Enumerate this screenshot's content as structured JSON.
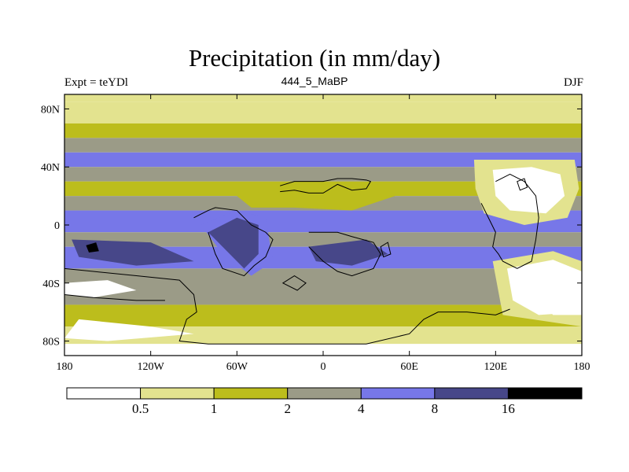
{
  "title": "Precipitation (in mm/day)",
  "subtitle_left": "Expt = teYDl",
  "subtitle_center": "444_5_MaBP",
  "subtitle_right": "DJF",
  "colors": {
    "lt05": "#ffffff",
    "0.5-1": "#e3e38f",
    "1-2": "#bcbd1c",
    "2-4": "#9b9b87",
    "4-8": "#7777e8",
    "8-16": "#474789",
    "gt16": "#000000",
    "coast": "#000000"
  },
  "lat_ticks": [
    {
      "value": 80,
      "label": "80N"
    },
    {
      "value": 40,
      "label": "40N"
    },
    {
      "value": 0,
      "label": "0"
    },
    {
      "value": -40,
      "label": "40S"
    },
    {
      "value": -80,
      "label": "80S"
    }
  ],
  "lon_ticks": [
    {
      "value": -180,
      "label": "180"
    },
    {
      "value": -120,
      "label": "120W"
    },
    {
      "value": -60,
      "label": "60W"
    },
    {
      "value": 0,
      "label": "0"
    },
    {
      "value": 60,
      "label": "60E"
    },
    {
      "value": 120,
      "label": "120E"
    },
    {
      "value": 180,
      "label": "180"
    }
  ],
  "colorbar": {
    "boxes": [
      "lt05",
      "0.5-1",
      "1-2",
      "2-4",
      "4-8",
      "8-16",
      "gt16"
    ],
    "labels": [
      "0.5",
      "1",
      "2",
      "4",
      "8",
      "16"
    ]
  },
  "bands": [
    {
      "lat_top": 90,
      "lat_bot": 85,
      "cls": "0.5-1"
    },
    {
      "lat_top": 85,
      "lat_bot": 70,
      "cls": "0.5-1"
    },
    {
      "lat_top": 70,
      "lat_bot": 60,
      "cls": "1-2"
    },
    {
      "lat_top": 60,
      "lat_bot": 50,
      "cls": "2-4"
    },
    {
      "lat_top": 50,
      "lat_bot": 40,
      "cls": "4-8"
    },
    {
      "lat_top": 40,
      "lat_bot": 30,
      "cls": "2-4"
    },
    {
      "lat_top": 30,
      "lat_bot": 20,
      "cls": "1-2"
    },
    {
      "lat_top": 20,
      "lat_bot": 10,
      "cls": "2-4"
    },
    {
      "lat_top": 10,
      "lat_bot": -5,
      "cls": "4-8"
    },
    {
      "lat_top": -5,
      "lat_bot": -15,
      "cls": "2-4"
    },
    {
      "lat_top": -15,
      "lat_bot": -30,
      "cls": "4-8"
    },
    {
      "lat_top": -30,
      "lat_bot": -55,
      "cls": "2-4"
    },
    {
      "lat_top": -55,
      "lat_bot": -70,
      "cls": "1-2"
    },
    {
      "lat_top": -70,
      "lat_bot": -82,
      "cls": "0.5-1"
    },
    {
      "lat_top": -82,
      "lat_bot": -90,
      "cls": "lt05"
    }
  ],
  "patches": [
    {
      "cls": "lt05",
      "poly": [
        [
          115,
          40
        ],
        [
          140,
          42
        ],
        [
          165,
          38
        ],
        [
          170,
          25
        ],
        [
          165,
          10
        ],
        [
          150,
          5
        ],
        [
          130,
          6
        ],
        [
          122,
          18
        ]
      ]
    },
    {
      "cls": "0.5-1",
      "poly": [
        [
          105,
          45
        ],
        [
          175,
          45
        ],
        [
          178,
          25
        ],
        [
          170,
          5
        ],
        [
          140,
          0
        ],
        [
          112,
          8
        ],
        [
          106,
          25
        ]
      ]
    },
    {
      "cls": "lt05",
      "poly": [
        [
          118,
          38
        ],
        [
          145,
          40
        ],
        [
          165,
          35
        ],
        [
          168,
          20
        ],
        [
          155,
          8
        ],
        [
          130,
          10
        ],
        [
          120,
          20
        ]
      ]
    },
    {
      "cls": "lt05",
      "poly": [
        [
          125,
          -30
        ],
        [
          155,
          -22
        ],
        [
          178,
          -30
        ],
        [
          178,
          -60
        ],
        [
          150,
          -65
        ],
        [
          128,
          -55
        ]
      ]
    },
    {
      "cls": "0.5-1",
      "poly": [
        [
          118,
          -25
        ],
        [
          160,
          -18
        ],
        [
          180,
          -25
        ],
        [
          180,
          -70
        ],
        [
          125,
          -62
        ]
      ]
    },
    {
      "cls": "lt05",
      "poly": [
        [
          128,
          -30
        ],
        [
          160,
          -24
        ],
        [
          180,
          -32
        ],
        [
          180,
          -60
        ],
        [
          150,
          -62
        ],
        [
          132,
          -52
        ]
      ]
    },
    {
      "cls": "1-2",
      "poly": [
        [
          -60,
          20
        ],
        [
          -30,
          25
        ],
        [
          0,
          22
        ],
        [
          40,
          28
        ],
        [
          50,
          20
        ],
        [
          20,
          10
        ],
        [
          -20,
          12
        ],
        [
          -50,
          12
        ]
      ]
    },
    {
      "cls": "4-8",
      "poly": [
        [
          -85,
          0
        ],
        [
          -60,
          10
        ],
        [
          -40,
          5
        ],
        [
          -35,
          -25
        ],
        [
          -50,
          -35
        ],
        [
          -70,
          -20
        ]
      ]
    },
    {
      "cls": "8-16",
      "poly": [
        [
          -80,
          -5
        ],
        [
          -60,
          5
        ],
        [
          -45,
          0
        ],
        [
          -45,
          -20
        ],
        [
          -55,
          -30
        ],
        [
          -70,
          -15
        ]
      ]
    },
    {
      "cls": "8-16",
      "poly": [
        [
          -175,
          -10
        ],
        [
          -120,
          -12
        ],
        [
          -90,
          -25
        ],
        [
          -130,
          -28
        ],
        [
          -170,
          -22
        ]
      ]
    },
    {
      "cls": "8-16",
      "poly": [
        [
          -10,
          -15
        ],
        [
          30,
          -10
        ],
        [
          45,
          -20
        ],
        [
          20,
          -28
        ],
        [
          -5,
          -25
        ]
      ]
    },
    {
      "cls": "gt16",
      "poly": [
        [
          -165,
          -14
        ],
        [
          -158,
          -12
        ],
        [
          -156,
          -18
        ],
        [
          -163,
          -19
        ]
      ]
    },
    {
      "cls": "lt05",
      "poly": [
        [
          -180,
          -40
        ],
        [
          -150,
          -38
        ],
        [
          -130,
          -45
        ],
        [
          -160,
          -50
        ],
        [
          -180,
          -48
        ]
      ]
    },
    {
      "cls": "lt05",
      "poly": [
        [
          150,
          -52
        ],
        [
          180,
          -50
        ],
        [
          180,
          -62
        ],
        [
          160,
          -62
        ]
      ]
    },
    {
      "cls": "lt05",
      "poly": [
        [
          -170,
          -65
        ],
        [
          -120,
          -70
        ],
        [
          -90,
          -75
        ],
        [
          -150,
          -80
        ],
        [
          -180,
          -78
        ]
      ]
    }
  ],
  "coastlines": [
    [
      [
        -30,
        27
      ],
      [
        -20,
        30
      ],
      [
        -10,
        30
      ],
      [
        0,
        30
      ],
      [
        10,
        32
      ],
      [
        20,
        32
      ],
      [
        30,
        31
      ],
      [
        33,
        30
      ],
      [
        30,
        25
      ],
      [
        20,
        24
      ],
      [
        10,
        28
      ],
      [
        0,
        22
      ],
      [
        -10,
        22
      ],
      [
        -20,
        24
      ],
      [
        -30,
        23
      ]
    ],
    [
      [
        -90,
        5
      ],
      [
        -80,
        10
      ],
      [
        -75,
        12
      ],
      [
        -60,
        10
      ],
      [
        -50,
        0
      ],
      [
        -40,
        -5
      ],
      [
        -35,
        -10
      ],
      [
        -40,
        -22
      ],
      [
        -48,
        -28
      ],
      [
        -55,
        -35
      ],
      [
        -70,
        -30
      ],
      [
        -75,
        -20
      ],
      [
        -80,
        -5
      ]
    ],
    [
      [
        -10,
        -5
      ],
      [
        10,
        -5
      ],
      [
        20,
        -8
      ],
      [
        35,
        -12
      ],
      [
        40,
        -20
      ],
      [
        35,
        -30
      ],
      [
        20,
        -35
      ],
      [
        10,
        -32
      ],
      [
        0,
        -25
      ],
      [
        -10,
        -15
      ]
    ],
    [
      [
        110,
        15
      ],
      [
        115,
        5
      ],
      [
        120,
        -5
      ],
      [
        118,
        -15
      ],
      [
        122,
        -20
      ],
      [
        125,
        -25
      ],
      [
        135,
        -30
      ],
      [
        145,
        -25
      ],
      [
        148,
        -10
      ],
      [
        150,
        5
      ],
      [
        148,
        20
      ],
      [
        140,
        30
      ],
      [
        130,
        35
      ],
      [
        120,
        30
      ]
    ],
    [
      [
        -180,
        -30
      ],
      [
        -160,
        -32
      ],
      [
        -130,
        -35
      ],
      [
        -100,
        -38
      ],
      [
        -90,
        -48
      ],
      [
        -88,
        -60
      ],
      [
        -95,
        -65
      ],
      [
        -100,
        -80
      ],
      [
        -80,
        -82
      ],
      [
        -40,
        -82
      ],
      [
        0,
        -82
      ],
      [
        30,
        -82
      ],
      [
        60,
        -75
      ],
      [
        70,
        -65
      ],
      [
        80,
        -60
      ],
      [
        100,
        -60
      ],
      [
        120,
        -62
      ],
      [
        130,
        -58
      ]
    ],
    [
      [
        -180,
        -48
      ],
      [
        -160,
        -50
      ],
      [
        -130,
        -52
      ],
      [
        -110,
        -52
      ]
    ]
  ],
  "land_patches": [
    [
      [
        -28,
        -40
      ],
      [
        -20,
        -35
      ],
      [
        -12,
        -40
      ],
      [
        -18,
        -45
      ]
    ],
    [
      [
        40,
        -15
      ],
      [
        45,
        -12
      ],
      [
        47,
        -20
      ],
      [
        42,
        -22
      ]
    ],
    [
      [
        135,
        30
      ],
      [
        140,
        32
      ],
      [
        142,
        26
      ],
      [
        137,
        24
      ]
    ]
  ]
}
